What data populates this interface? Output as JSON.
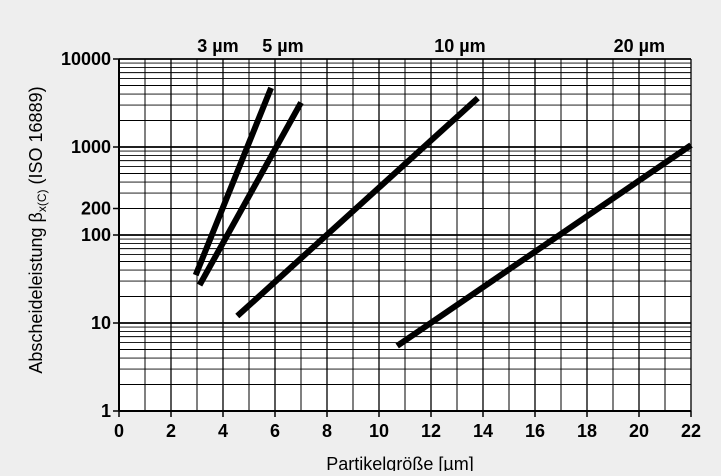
{
  "chart_data": {
    "type": "line",
    "title": "",
    "xlabel": "Partikelgröße [µm]",
    "ylabel_main": "Abscheideleistung β",
    "ylabel_sub": "x(C)",
    "ylabel_suffix": "(ISO 16889)",
    "xlim": [
      0,
      22
    ],
    "ylim": [
      1,
      10000
    ],
    "yscale": "log",
    "grid": true,
    "x_ticks": [
      0,
      2,
      4,
      6,
      8,
      10,
      12,
      14,
      16,
      18,
      20,
      22
    ],
    "y_tick_labels": [
      {
        "value": 10000,
        "label": "10000"
      },
      {
        "value": 1000,
        "label": "1000"
      },
      {
        "value": 200,
        "label": "200"
      },
      {
        "value": 100,
        "label": "100"
      },
      {
        "value": 10,
        "label": "10"
      },
      {
        "value": 1,
        "label": "1"
      }
    ],
    "series": [
      {
        "name": "3 µm",
        "x": [
          2.95,
          5.85
        ],
        "y": [
          35,
          4700
        ]
      },
      {
        "name": "5 µm",
        "x": [
          3.1,
          7.0
        ],
        "y": [
          27,
          3200
        ]
      },
      {
        "name": "10 µm",
        "x": [
          4.55,
          13.8
        ],
        "y": [
          12,
          3600
        ]
      },
      {
        "name": "20 µm",
        "x": [
          10.7,
          22.0
        ],
        "y": [
          5.5,
          1050
        ]
      }
    ],
    "annotations": [
      {
        "text": "3 µm",
        "x": 4.6
      },
      {
        "text": "5 µm",
        "x": 7.1
      },
      {
        "text": "10 µm",
        "x": 14.1
      },
      {
        "text": "20 µm",
        "x": 21.0
      }
    ]
  }
}
